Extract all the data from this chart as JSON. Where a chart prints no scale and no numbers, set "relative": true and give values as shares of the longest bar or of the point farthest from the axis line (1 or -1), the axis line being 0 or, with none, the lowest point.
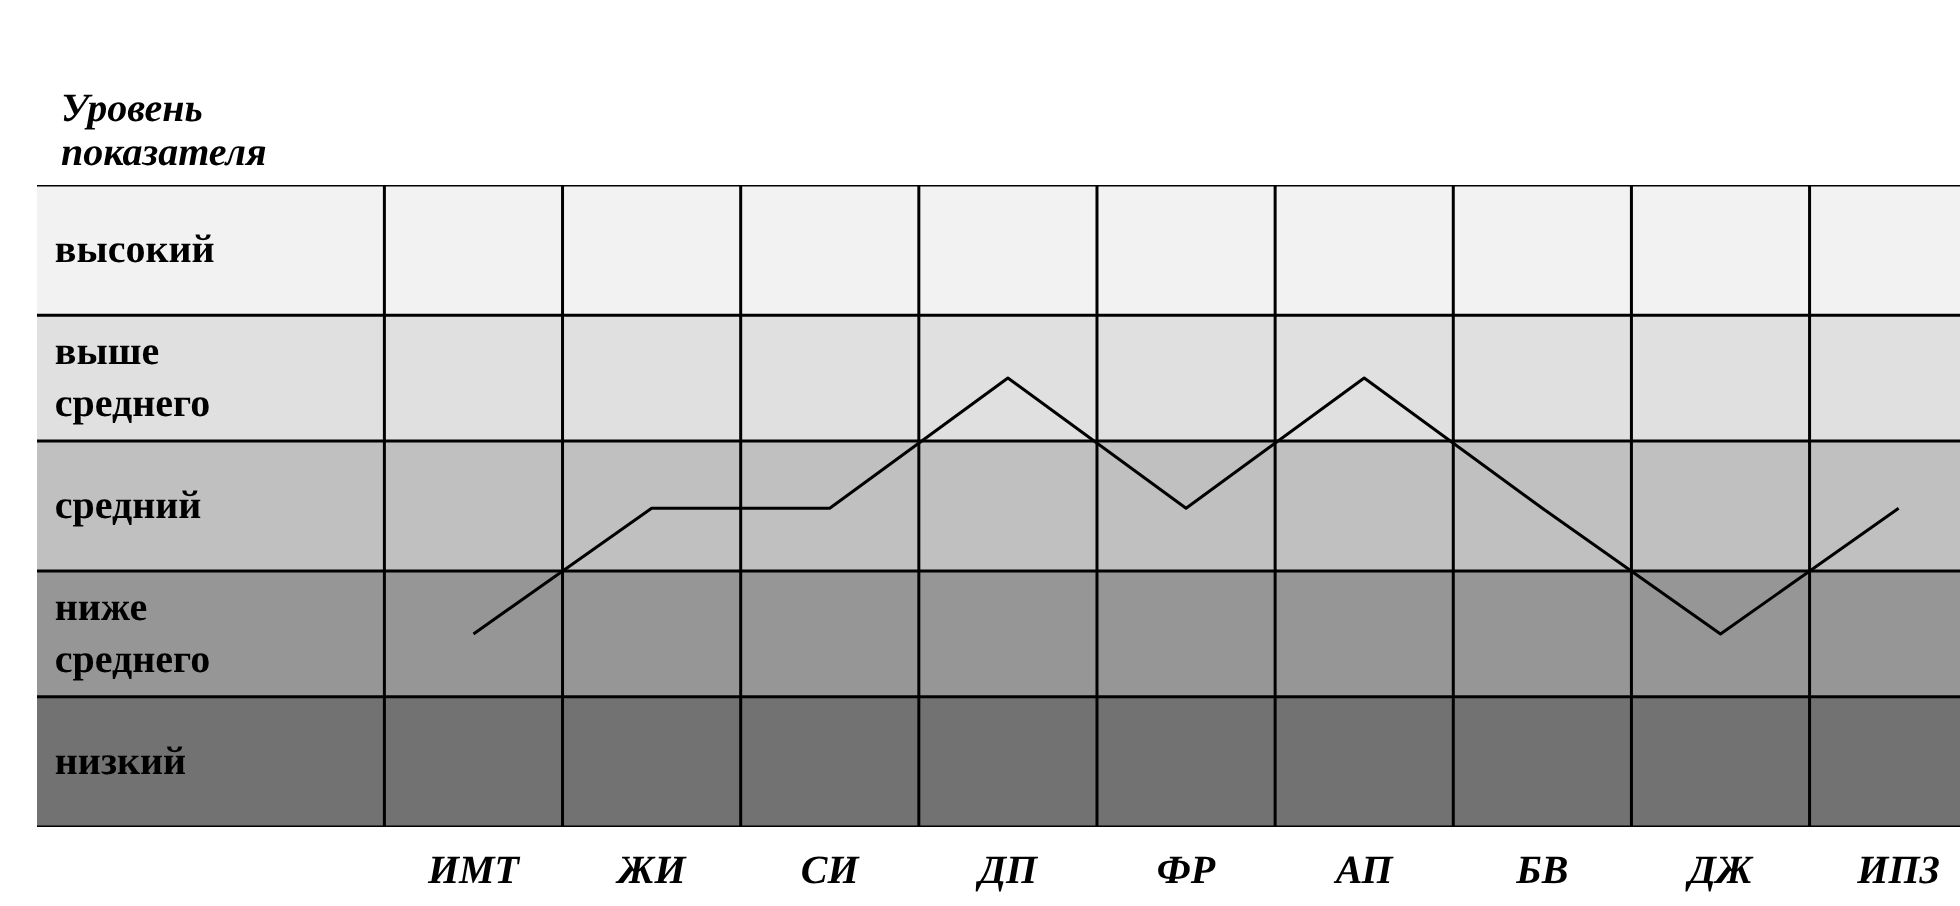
{
  "chart_data": {
    "type": "line",
    "annotations": [
      "Уровень показателя"
    ],
    "relative": true,
    "categories": [
      "ИМТ",
      "ЖИ",
      "СИ",
      "ДП",
      "ФР",
      "АП",
      "БВ",
      "ДЖ",
      "ИПЗ"
    ],
    "series": [
      {
        "color": "#000000",
        "values": [
          0.43,
          0.71,
          0.71,
          1,
          0.71,
          1,
          0.71,
          0.43,
          0.71
        ]
      }
    ],
    "bands": [
      {
        "axis": "y",
        "from": 0,
        "to": 0.29,
        "color": "#727272",
        "label": "низкий"
      },
      {
        "axis": "y",
        "from": 0.29,
        "to": 0.57,
        "color": "#969696",
        "label": "ниже среднего"
      },
      {
        "axis": "y",
        "from": 0.57,
        "to": 0.86,
        "color": "#c0c0c0",
        "label": "средний"
      },
      {
        "axis": "y",
        "from": 0.86,
        "to": 1.14,
        "color": "#e0e0e0",
        "label": "выше среднего"
      },
      {
        "axis": "y",
        "from": 1.14,
        "to": 1.43,
        "color": "#f2f2f2",
        "label": "высокий"
      }
    ],
    "grid": "x",
    "marker": "none",
    "line_style": "solid"
  }
}
